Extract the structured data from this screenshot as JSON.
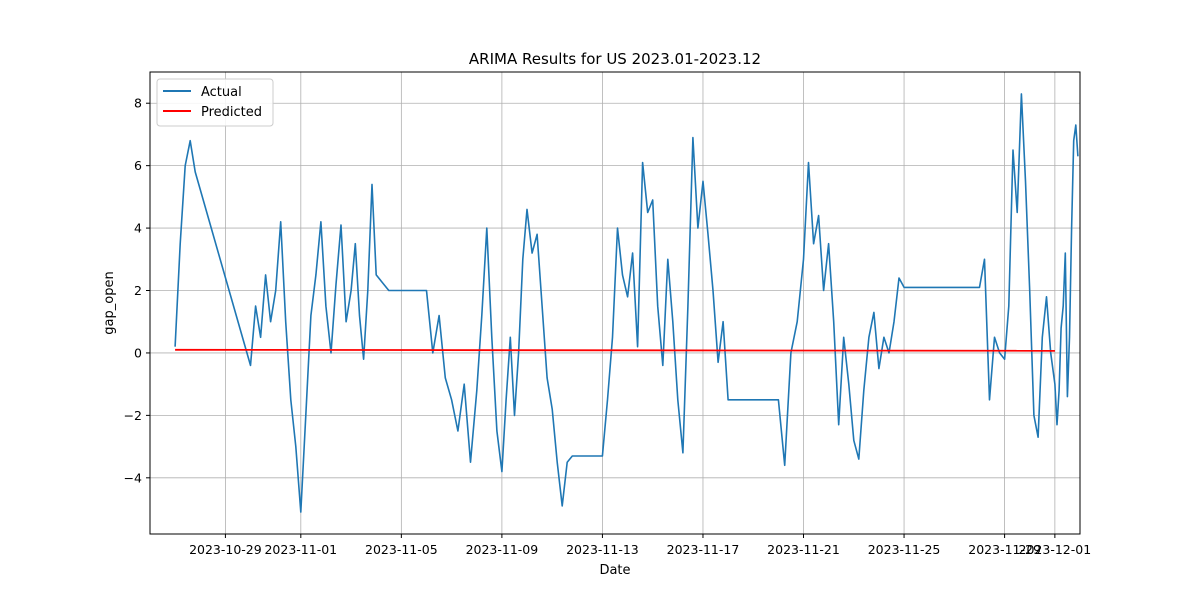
{
  "chart_data": {
    "type": "line",
    "title": "ARIMA Results for US 2023.01-2023.12",
    "xlabel": "Date",
    "ylabel": "gap_open",
    "xlim": [
      "2023-10-26",
      "2023-12-02"
    ],
    "ylim": [
      -5.8,
      9.0
    ],
    "x_ticks": [
      "2023-10-29",
      "2023-11-01",
      "2023-11-05",
      "2023-11-09",
      "2023-11-13",
      "2023-11-17",
      "2023-11-21",
      "2023-11-25",
      "2023-11-29",
      "2023-12-01"
    ],
    "y_ticks": [
      -4,
      -2,
      0,
      2,
      4,
      6,
      8
    ],
    "grid": true,
    "legend": "upper-left",
    "series": [
      {
        "name": "Actual",
        "color": "#1f77b4",
        "points": [
          [
            "2023-10-27",
            0.2
          ],
          [
            "2023-10-27",
            3.5
          ],
          [
            "2023-10-27",
            6.0
          ],
          [
            "2023-10-27",
            6.8
          ],
          [
            "2023-10-27",
            5.8
          ],
          [
            "2023-10-30",
            -0.4
          ],
          [
            "2023-10-30",
            1.5
          ],
          [
            "2023-10-30",
            0.5
          ],
          [
            "2023-10-30",
            2.5
          ],
          [
            "2023-10-30",
            1.0
          ],
          [
            "2023-10-31",
            2.0
          ],
          [
            "2023-10-31",
            4.2
          ],
          [
            "2023-10-31",
            1.0
          ],
          [
            "2023-10-31",
            -1.5
          ],
          [
            "2023-10-31",
            -3.0
          ],
          [
            "2023-11-01",
            -5.1
          ],
          [
            "2023-11-01",
            -2.0
          ],
          [
            "2023-11-01",
            1.2
          ],
          [
            "2023-11-01",
            2.5
          ],
          [
            "2023-11-01",
            4.2
          ],
          [
            "2023-11-02",
            1.5
          ],
          [
            "2023-11-02",
            0.0
          ],
          [
            "2023-11-02",
            2.2
          ],
          [
            "2023-11-02",
            4.1
          ],
          [
            "2023-11-02",
            1.0
          ],
          [
            "2023-11-03",
            2.0
          ],
          [
            "2023-11-03",
            3.5
          ],
          [
            "2023-11-03",
            1.2
          ],
          [
            "2023-11-03",
            -0.2
          ],
          [
            "2023-11-03",
            2.0
          ],
          [
            "2023-11-03",
            5.4
          ],
          [
            "2023-11-04",
            2.5
          ],
          [
            "2023-11-04",
            2.0
          ],
          [
            "2023-11-06",
            2.0
          ],
          [
            "2023-11-06",
            0.0
          ],
          [
            "2023-11-06",
            1.2
          ],
          [
            "2023-11-06",
            -0.8
          ],
          [
            "2023-11-07",
            -1.5
          ],
          [
            "2023-11-07",
            -2.5
          ],
          [
            "2023-11-07",
            -1.0
          ],
          [
            "2023-11-07",
            -3.5
          ],
          [
            "2023-11-08",
            -1.2
          ],
          [
            "2023-11-08",
            1.2
          ],
          [
            "2023-11-08",
            4.0
          ],
          [
            "2023-11-08",
            0.5
          ],
          [
            "2023-11-08",
            -2.5
          ],
          [
            "2023-11-09",
            -3.8
          ],
          [
            "2023-11-09",
            -1.5
          ],
          [
            "2023-11-09",
            0.5
          ],
          [
            "2023-11-09",
            -2.0
          ],
          [
            "2023-11-09",
            0.0
          ],
          [
            "2023-11-09",
            3.0
          ],
          [
            "2023-11-10",
            4.6
          ],
          [
            "2023-11-10",
            3.2
          ],
          [
            "2023-11-10",
            3.8
          ],
          [
            "2023-11-10",
            1.5
          ],
          [
            "2023-11-10",
            -0.8
          ],
          [
            "2023-11-11",
            -1.8
          ],
          [
            "2023-11-11",
            -3.5
          ],
          [
            "2023-11-11",
            -4.9
          ],
          [
            "2023-11-11",
            -3.5
          ],
          [
            "2023-11-11",
            -3.3
          ],
          [
            "2023-11-13",
            -3.3
          ],
          [
            "2023-11-13",
            -1.5
          ],
          [
            "2023-11-13",
            0.5
          ],
          [
            "2023-11-13",
            4.0
          ],
          [
            "2023-11-13",
            2.5
          ],
          [
            "2023-11-14",
            1.8
          ],
          [
            "2023-11-14",
            3.2
          ],
          [
            "2023-11-14",
            0.2
          ],
          [
            "2023-11-14",
            6.1
          ],
          [
            "2023-11-14",
            4.5
          ],
          [
            "2023-11-15",
            4.9
          ],
          [
            "2023-11-15",
            1.5
          ],
          [
            "2023-11-15",
            -0.4
          ],
          [
            "2023-11-15",
            3.0
          ],
          [
            "2023-11-15",
            1.0
          ],
          [
            "2023-11-16",
            -1.5
          ],
          [
            "2023-11-16",
            -3.2
          ],
          [
            "2023-11-16",
            1.5
          ],
          [
            "2023-11-16",
            6.9
          ],
          [
            "2023-11-16",
            4.0
          ],
          [
            "2023-11-17",
            5.5
          ],
          [
            "2023-11-17",
            3.8
          ],
          [
            "2023-11-17",
            2.0
          ],
          [
            "2023-11-17",
            -0.3
          ],
          [
            "2023-11-17",
            1.0
          ],
          [
            "2023-11-18",
            -1.5
          ],
          [
            "2023-11-20",
            -1.5
          ],
          [
            "2023-11-20",
            -3.6
          ],
          [
            "2023-11-20",
            0.0
          ],
          [
            "2023-11-20",
            1.0
          ],
          [
            "2023-11-21",
            3.0
          ],
          [
            "2023-11-21",
            6.1
          ],
          [
            "2023-11-21",
            3.5
          ],
          [
            "2023-11-21",
            4.4
          ],
          [
            "2023-11-21",
            2.0
          ],
          [
            "2023-11-22",
            3.5
          ],
          [
            "2023-11-22",
            1.0
          ],
          [
            "2023-11-22",
            -2.3
          ],
          [
            "2023-11-22",
            0.5
          ],
          [
            "2023-11-22",
            -1.0
          ],
          [
            "2023-11-23",
            -2.8
          ],
          [
            "2023-11-23",
            -3.4
          ],
          [
            "2023-11-23",
            -1.2
          ],
          [
            "2023-11-23",
            0.5
          ],
          [
            "2023-11-23",
            1.3
          ],
          [
            "2023-11-24",
            -0.5
          ],
          [
            "2023-11-24",
            0.5
          ],
          [
            "2023-11-24",
            0.0
          ],
          [
            "2023-11-24",
            1.0
          ],
          [
            "2023-11-24",
            2.4
          ],
          [
            "2023-11-25",
            2.1
          ],
          [
            "2023-11-28",
            2.1
          ],
          [
            "2023-11-28",
            3.0
          ],
          [
            "2023-11-28",
            -1.5
          ],
          [
            "2023-11-28",
            0.5
          ],
          [
            "2023-11-28",
            0.0
          ],
          [
            "2023-11-29",
            -0.2
          ],
          [
            "2023-11-29",
            1.5
          ],
          [
            "2023-11-29",
            6.5
          ],
          [
            "2023-11-29",
            4.5
          ],
          [
            "2023-11-29",
            8.3
          ],
          [
            "2023-11-29",
            5.5
          ],
          [
            "2023-11-30",
            2.0
          ],
          [
            "2023-11-30",
            -2.0
          ],
          [
            "2023-11-30",
            -2.7
          ],
          [
            "2023-11-30",
            0.5
          ],
          [
            "2023-11-30",
            1.8
          ],
          [
            "2023-11-30",
            0.0
          ],
          [
            "2023-12-01",
            -1.0
          ],
          [
            "2023-12-01",
            -2.3
          ],
          [
            "2023-12-01",
            -1.2
          ],
          [
            "2023-12-01",
            0.8
          ],
          [
            "2023-12-01",
            1.5
          ],
          [
            "2023-12-01",
            3.2
          ],
          [
            "2023-12-01",
            -1.4
          ],
          [
            "2023-12-01",
            0.5
          ],
          [
            "2023-12-01",
            4.0
          ],
          [
            "2023-12-01",
            6.8
          ],
          [
            "2023-12-01",
            7.3
          ],
          [
            "2023-12-01",
            6.3
          ]
        ]
      },
      {
        "name": "Predicted",
        "color": "#ff0000",
        "points": [
          [
            "2023-10-27",
            0.1
          ],
          [
            "2023-12-01",
            0.07
          ]
        ]
      }
    ]
  }
}
